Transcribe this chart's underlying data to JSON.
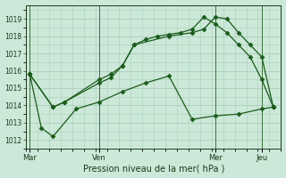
{
  "background_color": "#cce8d8",
  "grid_color": "#aacfba",
  "line_color": "#1a5c1a",
  "marker_color": "#1a5c1a",
  "xlabel": "Pression niveau de la mer( hPa )",
  "ylim": [
    1011.5,
    1019.8
  ],
  "yticks": [
    1012,
    1013,
    1014,
    1015,
    1016,
    1017,
    1018,
    1019
  ],
  "xlim": [
    -2,
    130
  ],
  "xtick_positions": [
    0,
    36,
    96,
    120
  ],
  "xtick_labels": [
    "Mar",
    "Ven",
    "Mer",
    "Jeu"
  ],
  "vline_positions": [
    0,
    36,
    96,
    120
  ],
  "series": [
    {
      "x": [
        0,
        12,
        18,
        36,
        42,
        48,
        54,
        72,
        84,
        90,
        96,
        102,
        108,
        114,
        120,
        126
      ],
      "y": [
        1015.8,
        1013.9,
        1014.2,
        1015.3,
        1015.6,
        1016.3,
        1017.5,
        1018.0,
        1018.2,
        1018.4,
        1019.1,
        1019.0,
        1018.2,
        1017.5,
        1016.8,
        1013.9
      ],
      "marker": "D",
      "markersize": 2.5,
      "linewidth": 0.9
    },
    {
      "x": [
        0,
        12,
        18,
        36,
        42,
        48,
        54,
        60,
        66,
        72,
        78,
        84,
        90,
        96,
        102,
        108,
        114,
        120,
        126
      ],
      "y": [
        1015.8,
        1013.9,
        1014.2,
        1015.5,
        1015.8,
        1016.3,
        1017.5,
        1017.8,
        1018.0,
        1018.1,
        1018.2,
        1018.4,
        1019.1,
        1018.7,
        1018.2,
        1017.5,
        1016.8,
        1015.5,
        1013.9
      ],
      "marker": "D",
      "markersize": 2.5,
      "linewidth": 0.9
    },
    {
      "x": [
        0,
        6,
        12,
        24,
        36,
        48,
        60,
        72,
        84,
        96,
        108,
        120,
        126
      ],
      "y": [
        1015.8,
        1012.7,
        1012.2,
        1013.8,
        1014.2,
        1014.8,
        1015.3,
        1015.7,
        1013.2,
        1013.4,
        1013.5,
        1013.8,
        1013.9
      ],
      "marker": "D",
      "markersize": 2.5,
      "linewidth": 0.9
    }
  ]
}
